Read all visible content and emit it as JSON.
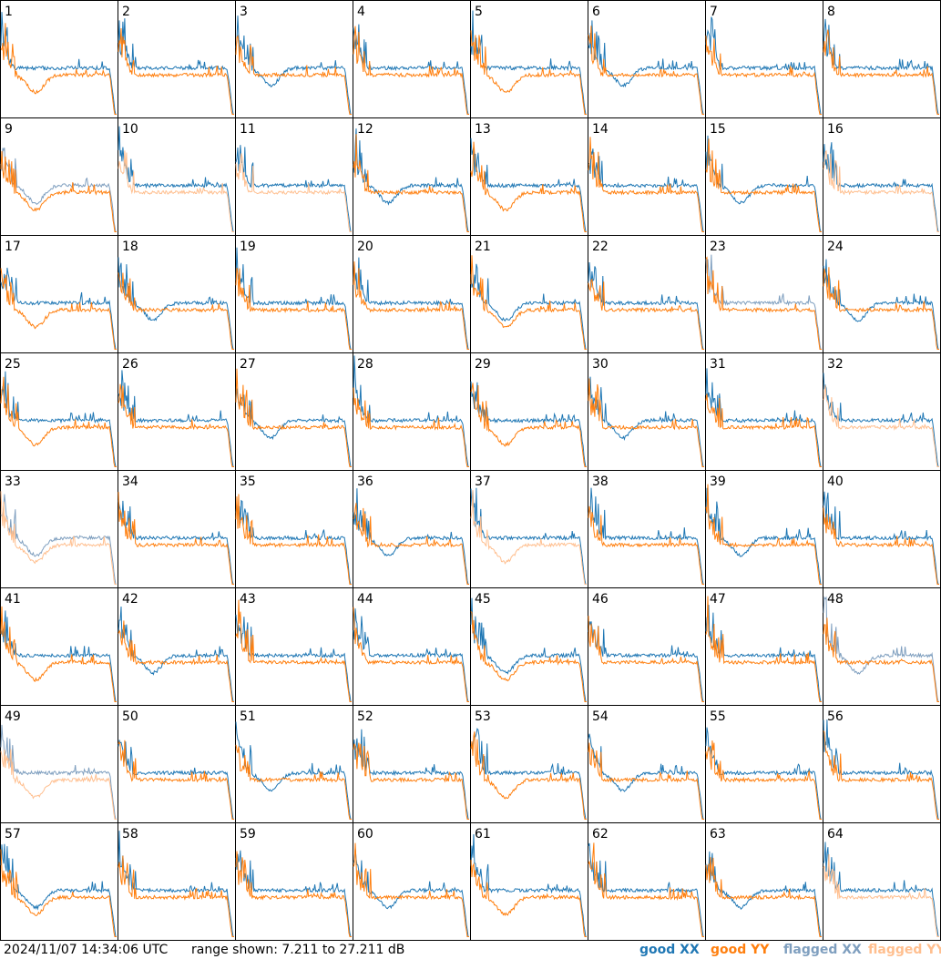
{
  "footer": {
    "timestamp": "2024/11/07 14:34:06 UTC",
    "range_text": "range shown: 7.211 to 27.211 dB"
  },
  "legend": [
    {
      "key": "good_xx",
      "label": "good XX",
      "color": "#1f77b4"
    },
    {
      "key": "good_yy",
      "label": "good YY",
      "color": "#ff7f0e"
    },
    {
      "key": "flagged_xx",
      "label": "flagged XX",
      "color": "#7f9fbf"
    },
    {
      "key": "flagged_yy",
      "label": "flagged YY",
      "color": "#ffbf8f"
    }
  ],
  "chart_data": {
    "type": "line",
    "layout": "small-multiples 8x8",
    "units": "dB",
    "ylim": [
      7.211,
      27.211
    ],
    "grid": false,
    "panels": [
      {
        "id": "1",
        "xx": "good",
        "yy": "good"
      },
      {
        "id": "2",
        "xx": "good",
        "yy": "good"
      },
      {
        "id": "3",
        "xx": "good",
        "yy": "good"
      },
      {
        "id": "4",
        "xx": "good",
        "yy": "good"
      },
      {
        "id": "5",
        "xx": "good",
        "yy": "good"
      },
      {
        "id": "6",
        "xx": "good",
        "yy": "good"
      },
      {
        "id": "7",
        "xx": "good",
        "yy": "good"
      },
      {
        "id": "8",
        "xx": "good",
        "yy": "good"
      },
      {
        "id": "9",
        "xx": "flagged",
        "yy": "good"
      },
      {
        "id": "10",
        "xx": "good",
        "yy": "flagged"
      },
      {
        "id": "11",
        "xx": "good",
        "yy": "flagged"
      },
      {
        "id": "12",
        "xx": "good",
        "yy": "good"
      },
      {
        "id": "13",
        "xx": "good",
        "yy": "good"
      },
      {
        "id": "14",
        "xx": "good",
        "yy": "good"
      },
      {
        "id": "15",
        "xx": "good",
        "yy": "good"
      },
      {
        "id": "16",
        "xx": "good",
        "yy": "flagged"
      },
      {
        "id": "17",
        "xx": "good",
        "yy": "good"
      },
      {
        "id": "18",
        "xx": "good",
        "yy": "good"
      },
      {
        "id": "19",
        "xx": "good",
        "yy": "good"
      },
      {
        "id": "20",
        "xx": "good",
        "yy": "good"
      },
      {
        "id": "21",
        "xx": "good",
        "yy": "good"
      },
      {
        "id": "22",
        "xx": "good",
        "yy": "good"
      },
      {
        "id": "23",
        "xx": "flagged",
        "yy": "good"
      },
      {
        "id": "24",
        "xx": "good",
        "yy": "good"
      },
      {
        "id": "25",
        "xx": "good",
        "yy": "good"
      },
      {
        "id": "26",
        "xx": "good",
        "yy": "good"
      },
      {
        "id": "27",
        "xx": "good",
        "yy": "good"
      },
      {
        "id": "28",
        "xx": "good",
        "yy": "good"
      },
      {
        "id": "29",
        "xx": "good",
        "yy": "good"
      },
      {
        "id": "30",
        "xx": "good",
        "yy": "good"
      },
      {
        "id": "31",
        "xx": "good",
        "yy": "good"
      },
      {
        "id": "32",
        "xx": "good",
        "yy": "flagged"
      },
      {
        "id": "33",
        "xx": "flagged",
        "yy": "flagged"
      },
      {
        "id": "34",
        "xx": "good",
        "yy": "good"
      },
      {
        "id": "35",
        "xx": "good",
        "yy": "good"
      },
      {
        "id": "36",
        "xx": "good",
        "yy": "good"
      },
      {
        "id": "37",
        "xx": "good",
        "yy": "flagged"
      },
      {
        "id": "38",
        "xx": "good",
        "yy": "good"
      },
      {
        "id": "39",
        "xx": "good",
        "yy": "good"
      },
      {
        "id": "40",
        "xx": "good",
        "yy": "good"
      },
      {
        "id": "41",
        "xx": "good",
        "yy": "good"
      },
      {
        "id": "42",
        "xx": "good",
        "yy": "good"
      },
      {
        "id": "43",
        "xx": "good",
        "yy": "good"
      },
      {
        "id": "44",
        "xx": "good",
        "yy": "good"
      },
      {
        "id": "45",
        "xx": "good",
        "yy": "good"
      },
      {
        "id": "46",
        "xx": "good",
        "yy": "good"
      },
      {
        "id": "47",
        "xx": "good",
        "yy": "good"
      },
      {
        "id": "48",
        "xx": "flagged",
        "yy": "good"
      },
      {
        "id": "49",
        "xx": "flagged",
        "yy": "flagged"
      },
      {
        "id": "50",
        "xx": "good",
        "yy": "good"
      },
      {
        "id": "51",
        "xx": "good",
        "yy": "good"
      },
      {
        "id": "52",
        "xx": "good",
        "yy": "good"
      },
      {
        "id": "53",
        "xx": "good",
        "yy": "good"
      },
      {
        "id": "54",
        "xx": "good",
        "yy": "good"
      },
      {
        "id": "55",
        "xx": "good",
        "yy": "good"
      },
      {
        "id": "56",
        "xx": "good",
        "yy": "good"
      },
      {
        "id": "57",
        "xx": "good",
        "yy": "good"
      },
      {
        "id": "58",
        "xx": "good",
        "yy": "good"
      },
      {
        "id": "59",
        "xx": "good",
        "yy": "good"
      },
      {
        "id": "60",
        "xx": "good",
        "yy": "good"
      },
      {
        "id": "61",
        "xx": "good",
        "yy": "good"
      },
      {
        "id": "62",
        "xx": "good",
        "yy": "good"
      },
      {
        "id": "63",
        "xx": "good",
        "yy": "good"
      },
      {
        "id": "64",
        "xx": "good",
        "yy": "flagged"
      }
    ]
  }
}
